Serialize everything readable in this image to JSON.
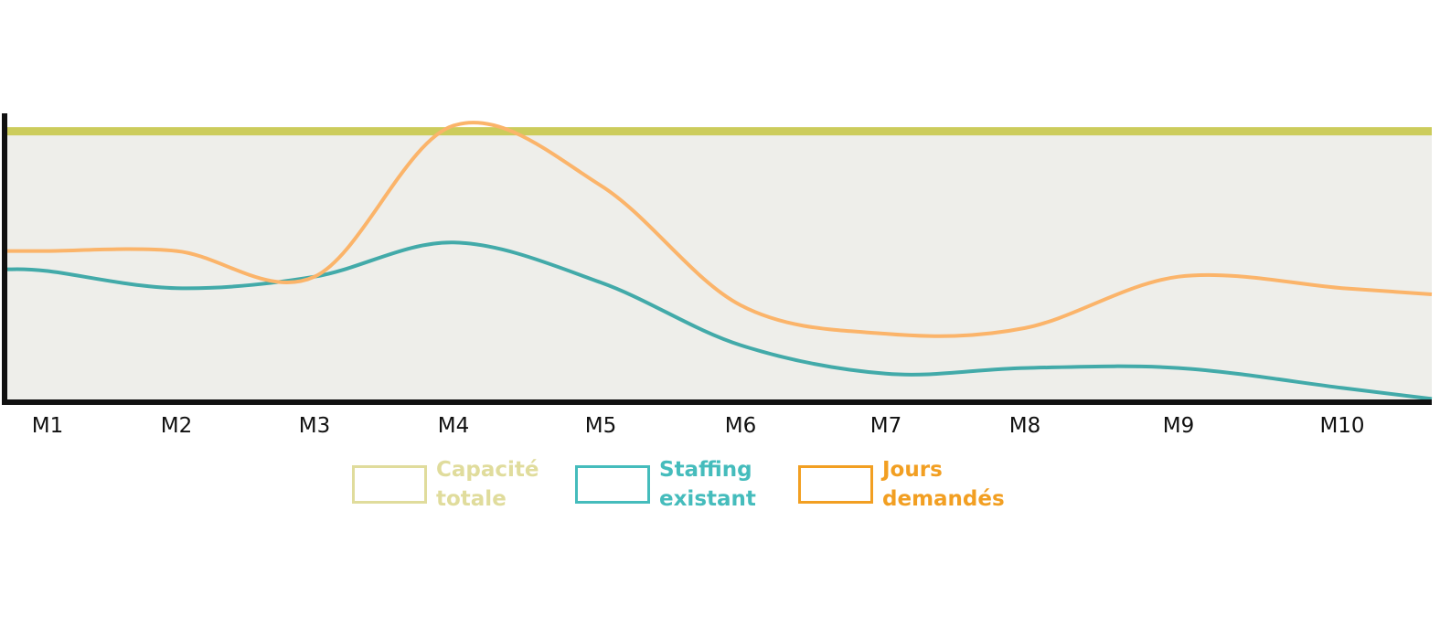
{
  "chart_data": {
    "type": "line",
    "categories": [
      "M1",
      "M2",
      "M3",
      "M4",
      "M5",
      "M6",
      "M7",
      "M8",
      "M9",
      "M10"
    ],
    "ylim": [
      0,
      100
    ],
    "series": [
      {
        "name": "Capacité totale",
        "color": "#cccc5c",
        "legend_color": "#e0dc9c",
        "values": [
          95,
          95,
          95,
          95,
          95,
          95,
          95,
          95,
          95,
          95
        ]
      },
      {
        "name": "Staffing existant",
        "color": "#42aaa9",
        "legend_color": "#45bcbc",
        "values": [
          46,
          40,
          44,
          56,
          42,
          20,
          10,
          12,
          12,
          5
        ]
      },
      {
        "name": "Jours demandés",
        "color": "#fbb46a",
        "legend_color": "#f29f22",
        "values": [
          53,
          53,
          44,
          97,
          76,
          34,
          24,
          26,
          44,
          40
        ]
      }
    ],
    "legend_position": "bottom",
    "plot_background": "#eeeeea",
    "axis_color": "#111111"
  },
  "legend": [
    {
      "line1": "Capacité",
      "line2": "totale"
    },
    {
      "line1": "Staffing",
      "line2": "existant"
    },
    {
      "line1": "Jours",
      "line2": "demandés"
    }
  ]
}
